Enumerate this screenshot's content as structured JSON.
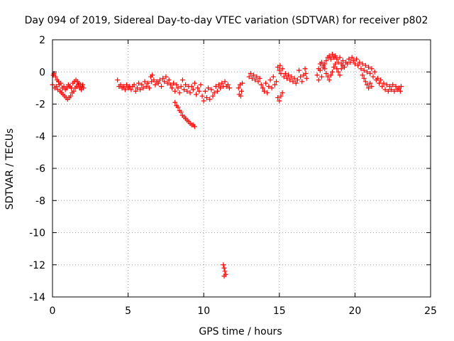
{
  "chart_data": {
    "type": "scatter",
    "title": "Day 094 of 2019, Sidereal Day-to-day VTEC variation (SDTVAR) for receiver p802",
    "xlabel": "GPS time / hours",
    "ylabel": "SDTVAR / TECUs",
    "xlim": [
      0,
      25
    ],
    "ylim": [
      -14,
      2
    ],
    "xticks": [
      0,
      5,
      10,
      15,
      20,
      25
    ],
    "xtick_labels": [
      "0",
      "5",
      "10",
      "15",
      "20",
      "25"
    ],
    "yticks": [
      2,
      0,
      -2,
      -4,
      -6,
      -8,
      -10,
      -12,
      -14
    ],
    "ytick_labels": [
      "2",
      "0",
      "-2",
      "-4",
      "-6",
      "-8",
      "-10",
      "-12",
      "-14"
    ],
    "grid": true,
    "marker": "+",
    "color": "#ff0000",
    "series": [
      {
        "name": "SDTVAR",
        "points": [
          [
            0.0,
            -0.8
          ],
          [
            0.05,
            -0.2
          ],
          [
            0.1,
            -0.1
          ],
          [
            0.15,
            -1.0
          ],
          [
            0.2,
            -0.3
          ],
          [
            0.25,
            -0.9
          ],
          [
            0.3,
            -0.5
          ],
          [
            0.35,
            -1.1
          ],
          [
            0.4,
            -0.6
          ],
          [
            0.45,
            -0.8
          ],
          [
            0.5,
            -1.2
          ],
          [
            0.55,
            -0.7
          ],
          [
            0.6,
            -1.3
          ],
          [
            0.65,
            -1.0
          ],
          [
            0.7,
            -1.4
          ],
          [
            0.75,
            -0.9
          ],
          [
            0.8,
            -1.5
          ],
          [
            0.85,
            -1.1
          ],
          [
            0.9,
            -1.6
          ],
          [
            0.95,
            -1.0
          ],
          [
            1.0,
            -1.7
          ],
          [
            1.05,
            -0.8
          ],
          [
            1.1,
            -1.6
          ],
          [
            1.15,
            -0.9
          ],
          [
            1.2,
            -1.5
          ],
          [
            1.25,
            -1.0
          ],
          [
            1.3,
            -1.3
          ],
          [
            1.35,
            -0.7
          ],
          [
            1.4,
            -1.2
          ],
          [
            1.45,
            -0.6
          ],
          [
            1.5,
            -1.0
          ],
          [
            1.55,
            -0.5
          ],
          [
            1.6,
            -0.9
          ],
          [
            1.65,
            -0.6
          ],
          [
            1.7,
            -0.8
          ],
          [
            1.75,
            -0.7
          ],
          [
            1.8,
            -1.0
          ],
          [
            1.85,
            -0.8
          ],
          [
            1.9,
            -1.1
          ],
          [
            1.95,
            -0.9
          ],
          [
            2.0,
            -0.8
          ],
          [
            2.05,
            -1.0
          ],
          [
            4.3,
            -0.5
          ],
          [
            4.4,
            -0.9
          ],
          [
            4.5,
            -0.8
          ],
          [
            4.6,
            -1.0
          ],
          [
            4.7,
            -0.9
          ],
          [
            4.8,
            -1.1
          ],
          [
            4.9,
            -0.8
          ],
          [
            5.0,
            -1.0
          ],
          [
            5.1,
            -0.9
          ],
          [
            5.2,
            -1.1
          ],
          [
            5.3,
            -0.9
          ],
          [
            5.4,
            -0.8
          ],
          [
            5.5,
            -1.2
          ],
          [
            5.6,
            -1.0
          ],
          [
            5.7,
            -0.7
          ],
          [
            5.8,
            -1.1
          ],
          [
            5.9,
            -0.8
          ],
          [
            6.0,
            -1.0
          ],
          [
            6.1,
            -0.6
          ],
          [
            6.2,
            -0.9
          ],
          [
            6.3,
            -0.7
          ],
          [
            6.4,
            -1.0
          ],
          [
            6.5,
            -0.3
          ],
          [
            6.55,
            -0.6
          ],
          [
            6.6,
            -0.2
          ],
          [
            6.7,
            -0.5
          ],
          [
            6.8,
            -0.8
          ],
          [
            6.9,
            -0.6
          ],
          [
            7.0,
            -0.7
          ],
          [
            7.1,
            -0.5
          ],
          [
            7.2,
            -0.9
          ],
          [
            7.3,
            -0.4
          ],
          [
            7.4,
            -0.6
          ],
          [
            7.5,
            -0.3
          ],
          [
            7.6,
            -0.7
          ],
          [
            7.7,
            -0.5
          ],
          [
            7.8,
            -0.8
          ],
          [
            7.9,
            -1.0
          ],
          [
            8.0,
            -0.7
          ],
          [
            8.1,
            -1.2
          ],
          [
            8.2,
            -0.8
          ],
          [
            8.3,
            -1.0
          ],
          [
            8.4,
            -1.3
          ],
          [
            8.5,
            -0.9
          ],
          [
            8.6,
            -0.5
          ],
          [
            8.7,
            -1.1
          ],
          [
            8.8,
            -0.8
          ],
          [
            8.9,
            -1.2
          ],
          [
            9.0,
            -0.9
          ],
          [
            9.1,
            -1.3
          ],
          [
            9.2,
            -0.9
          ],
          [
            9.3,
            -1.1
          ],
          [
            9.4,
            -0.7
          ],
          [
            9.5,
            -1.4
          ],
          [
            9.6,
            -1.0
          ],
          [
            9.7,
            -1.2
          ],
          [
            9.8,
            -0.8
          ],
          [
            9.9,
            -1.5
          ],
          [
            10.0,
            -1.8
          ],
          [
            10.1,
            -1.2
          ],
          [
            10.2,
            -1.6
          ],
          [
            10.3,
            -1.0
          ],
          [
            10.4,
            -1.7
          ],
          [
            10.5,
            -1.1
          ],
          [
            10.6,
            -1.5
          ],
          [
            10.7,
            -1.3
          ],
          [
            10.8,
            -0.9
          ],
          [
            10.9,
            -1.2
          ],
          [
            11.0,
            -0.8
          ],
          [
            11.1,
            -1.0
          ],
          [
            11.2,
            -0.7
          ],
          [
            11.3,
            -0.9
          ],
          [
            11.4,
            -0.6
          ],
          [
            11.5,
            -0.9
          ],
          [
            11.6,
            -0.8
          ],
          [
            11.7,
            -1.0
          ],
          [
            8.1,
            -1.9
          ],
          [
            8.2,
            -2.1
          ],
          [
            8.3,
            -2.2
          ],
          [
            8.4,
            -2.4
          ],
          [
            8.5,
            -2.5
          ],
          [
            8.6,
            -2.7
          ],
          [
            8.7,
            -2.8
          ],
          [
            8.8,
            -2.9
          ],
          [
            8.9,
            -3.0
          ],
          [
            9.0,
            -3.1
          ],
          [
            9.1,
            -3.2
          ],
          [
            9.2,
            -3.3
          ],
          [
            9.3,
            -3.3
          ],
          [
            9.4,
            -3.4
          ],
          [
            11.3,
            -12.0
          ],
          [
            11.35,
            -12.2
          ],
          [
            11.4,
            -12.4
          ],
          [
            11.45,
            -12.6
          ],
          [
            11.35,
            -12.7
          ],
          [
            12.3,
            -1.0
          ],
          [
            12.35,
            -1.4
          ],
          [
            12.4,
            -0.8
          ],
          [
            12.45,
            -1.5
          ],
          [
            12.5,
            -1.2
          ],
          [
            12.55,
            -0.7
          ],
          [
            13.0,
            -0.3
          ],
          [
            13.1,
            -0.1
          ],
          [
            13.2,
            -0.4
          ],
          [
            13.3,
            -0.2
          ],
          [
            13.4,
            -0.5
          ],
          [
            13.5,
            -0.3
          ],
          [
            13.6,
            -0.6
          ],
          [
            13.7,
            -0.4
          ],
          [
            13.8,
            -0.8
          ],
          [
            13.9,
            -1.0
          ],
          [
            14.0,
            -1.2
          ],
          [
            14.1,
            -0.7
          ],
          [
            14.2,
            -1.3
          ],
          [
            14.3,
            -0.9
          ],
          [
            14.4,
            -0.5
          ],
          [
            14.5,
            -1.0
          ],
          [
            14.6,
            -0.3
          ],
          [
            14.7,
            -0.8
          ],
          [
            14.8,
            -0.6
          ],
          [
            14.9,
            -1.6
          ],
          [
            15.0,
            -1.8
          ],
          [
            15.1,
            -1.5
          ],
          [
            15.2,
            -1.3
          ],
          [
            14.9,
            0.3
          ],
          [
            15.0,
            0.1
          ],
          [
            15.05,
            0.4
          ],
          [
            15.1,
            -0.1
          ],
          [
            15.2,
            0.2
          ],
          [
            15.3,
            -0.3
          ],
          [
            15.4,
            -0.1
          ],
          [
            15.5,
            -0.4
          ],
          [
            15.6,
            -0.2
          ],
          [
            15.7,
            -0.5
          ],
          [
            15.8,
            -0.3
          ],
          [
            15.9,
            -0.6
          ],
          [
            16.0,
            -0.4
          ],
          [
            16.1,
            -0.7
          ],
          [
            16.2,
            -0.5
          ],
          [
            16.3,
            0.1
          ],
          [
            16.4,
            -0.3
          ],
          [
            16.5,
            -0.6
          ],
          [
            16.6,
            -0.2
          ],
          [
            16.7,
            0.2
          ],
          [
            16.75,
            -0.1
          ],
          [
            16.8,
            -0.4
          ],
          [
            17.5,
            -0.2
          ],
          [
            17.6,
            -0.5
          ],
          [
            17.7,
            0.1
          ],
          [
            17.8,
            -0.3
          ],
          [
            17.9,
            0.3
          ],
          [
            18.0,
            0.5
          ],
          [
            18.1,
            0.7
          ],
          [
            18.2,
            0.9
          ],
          [
            18.3,
            1.0
          ],
          [
            18.4,
            0.8
          ],
          [
            18.5,
            1.1
          ],
          [
            18.6,
            0.9
          ],
          [
            18.7,
            1.0
          ],
          [
            18.8,
            0.8
          ],
          [
            18.9,
            0.6
          ],
          [
            19.0,
            0.9
          ],
          [
            19.1,
            0.5
          ],
          [
            19.2,
            0.7
          ],
          [
            19.3,
            0.3
          ],
          [
            19.4,
            0.6
          ],
          [
            17.6,
            0.2
          ],
          [
            17.7,
            0.5
          ],
          [
            17.8,
            0.6
          ],
          [
            17.9,
            0.4
          ],
          [
            18.0,
            0.2
          ],
          [
            18.1,
            -0.1
          ],
          [
            18.2,
            -0.3
          ],
          [
            18.3,
            -0.5
          ],
          [
            18.4,
            -0.2
          ],
          [
            18.5,
            0.0
          ],
          [
            18.6,
            0.3
          ],
          [
            18.7,
            0.5
          ],
          [
            18.8,
            0.2
          ],
          [
            18.9,
            0.0
          ],
          [
            19.0,
            -0.2
          ],
          [
            19.1,
            0.2
          ],
          [
            19.2,
            0.4
          ],
          [
            19.5,
            0.5
          ],
          [
            19.6,
            0.8
          ],
          [
            19.7,
            0.6
          ],
          [
            19.8,
            0.9
          ],
          [
            19.9,
            0.7
          ],
          [
            20.0,
            0.5
          ],
          [
            20.1,
            0.8
          ],
          [
            20.2,
            0.4
          ],
          [
            20.3,
            0.6
          ],
          [
            20.4,
            0.2
          ],
          [
            20.5,
            0.5
          ],
          [
            20.6,
            0.1
          ],
          [
            20.7,
            0.4
          ],
          [
            20.8,
            0.0
          ],
          [
            20.9,
            0.3
          ],
          [
            21.0,
            -0.1
          ],
          [
            21.1,
            0.2
          ],
          [
            21.2,
            -0.3
          ],
          [
            21.3,
            0.0
          ],
          [
            21.4,
            -0.5
          ],
          [
            20.5,
            -0.2
          ],
          [
            20.6,
            -0.4
          ],
          [
            20.7,
            -0.6
          ],
          [
            20.8,
            -0.8
          ],
          [
            20.9,
            -1.0
          ],
          [
            21.0,
            -0.7
          ],
          [
            21.1,
            -0.9
          ],
          [
            21.5,
            -0.4
          ],
          [
            21.6,
            -0.7
          ],
          [
            21.7,
            -0.5
          ],
          [
            21.8,
            -0.9
          ],
          [
            21.9,
            -0.7
          ],
          [
            22.0,
            -1.1
          ],
          [
            22.1,
            -0.8
          ],
          [
            22.2,
            -1.2
          ],
          [
            22.3,
            -0.9
          ],
          [
            22.4,
            -1.1
          ],
          [
            22.5,
            -0.8
          ],
          [
            22.6,
            -1.2
          ],
          [
            22.7,
            -0.9
          ],
          [
            22.8,
            -1.1
          ],
          [
            22.9,
            -1.0
          ],
          [
            23.0,
            -1.2
          ],
          [
            23.05,
            -0.9
          ]
        ]
      }
    ]
  }
}
